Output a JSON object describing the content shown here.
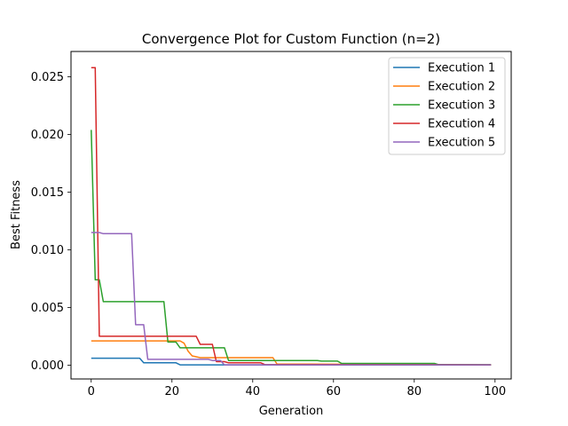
{
  "chart_data": {
    "type": "line",
    "title": "Convergence Plot for Custom Function (n=2)",
    "xlabel": "Generation",
    "ylabel": "Best Fitness",
    "xlim": [
      -5,
      104
    ],
    "ylim": [
      -0.0012,
      0.0272
    ],
    "xticks": [
      0,
      20,
      40,
      60,
      80,
      100
    ],
    "yticks": [
      0.0,
      0.005,
      0.01,
      0.015,
      0.02,
      0.025
    ],
    "ytick_labels": [
      "0.000",
      "0.005",
      "0.010",
      "0.015",
      "0.020",
      "0.025"
    ],
    "grid": false,
    "legend_position": "upper right",
    "series": [
      {
        "name": "Execution 1",
        "color": "#1f77b4",
        "points": [
          [
            0,
            0.0006
          ],
          [
            12,
            0.0006
          ],
          [
            13,
            0.0002
          ],
          [
            21,
            0.0002
          ],
          [
            22,
            2e-05
          ],
          [
            99,
            2e-05
          ]
        ]
      },
      {
        "name": "Execution 2",
        "color": "#ff7f0e",
        "points": [
          [
            0,
            0.0021
          ],
          [
            22,
            0.0021
          ],
          [
            23,
            0.0019
          ],
          [
            24,
            0.0012
          ],
          [
            25,
            0.0008
          ],
          [
            27,
            0.00065
          ],
          [
            45,
            0.00065
          ],
          [
            46,
            0.0001
          ],
          [
            99,
            2e-05
          ]
        ]
      },
      {
        "name": "Execution 3",
        "color": "#2ca02c",
        "points": [
          [
            0,
            0.0204
          ],
          [
            1,
            0.0074
          ],
          [
            2,
            0.0074
          ],
          [
            3,
            0.0055
          ],
          [
            18,
            0.0055
          ],
          [
            19,
            0.002
          ],
          [
            21,
            0.002
          ],
          [
            22,
            0.0015
          ],
          [
            33,
            0.0015
          ],
          [
            34,
            0.0004
          ],
          [
            56,
            0.0004
          ],
          [
            57,
            0.00035
          ],
          [
            61,
            0.00035
          ],
          [
            62,
            0.00015
          ],
          [
            85,
            0.00015
          ],
          [
            86,
            5e-05
          ],
          [
            99,
            3e-05
          ]
        ]
      },
      {
        "name": "Execution 4",
        "color": "#d62728",
        "points": [
          [
            0,
            0.0258
          ],
          [
            1,
            0.0258
          ],
          [
            2,
            0.0025
          ],
          [
            26,
            0.0025
          ],
          [
            27,
            0.0018
          ],
          [
            30,
            0.0018
          ],
          [
            31,
            0.0003
          ],
          [
            33,
            0.0003
          ],
          [
            34,
            0.0002
          ],
          [
            42,
            0.0002
          ],
          [
            43,
            5e-05
          ],
          [
            99,
            2e-05
          ]
        ]
      },
      {
        "name": "Execution 5",
        "color": "#9467bd",
        "points": [
          [
            0,
            0.0115
          ],
          [
            2,
            0.0115
          ],
          [
            3,
            0.0114
          ],
          [
            10,
            0.0114
          ],
          [
            11,
            0.0035
          ],
          [
            13,
            0.0035
          ],
          [
            14,
            0.0005
          ],
          [
            29,
            0.0005
          ],
          [
            30,
            0.0004
          ],
          [
            32,
            0.0004
          ],
          [
            33,
            2e-05
          ],
          [
            99,
            2e-05
          ]
        ]
      }
    ]
  }
}
